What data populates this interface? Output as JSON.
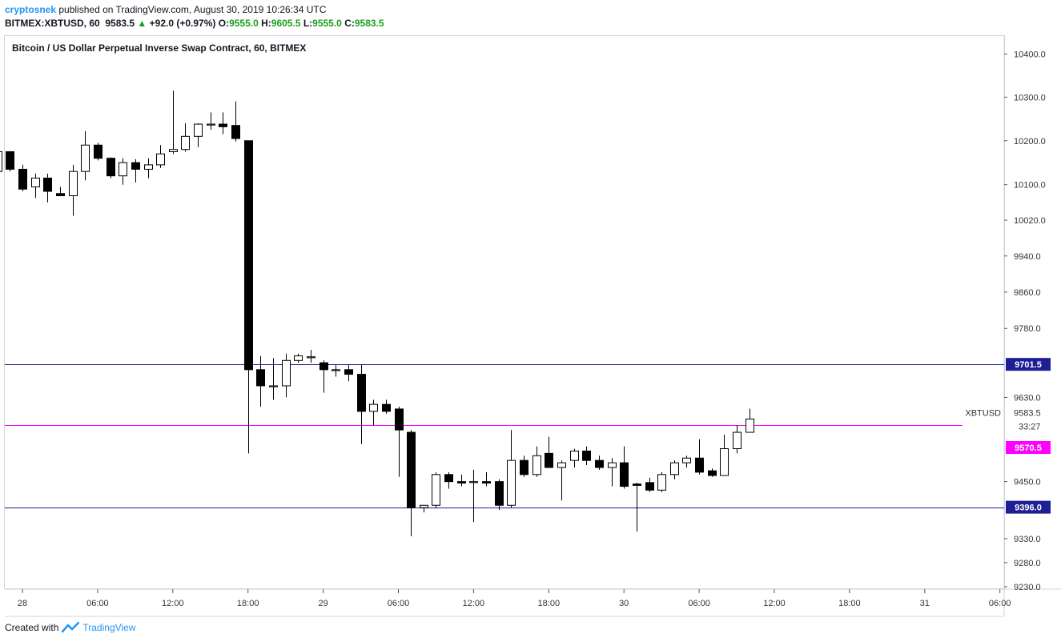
{
  "publish_line": {
    "author": "cryptosnek",
    "text": " published on TradingView.com, August 30, 2019 10:26:34 UTC"
  },
  "ticker_line": {
    "symbol": "BITMEX:XBTUSD, 60",
    "last": "9583.5",
    "arrow": "▲",
    "change": "+92.0 (+0.97%)",
    "o_label": "O:",
    "o": "9555.0",
    "h_label": "H:",
    "h": "9605.5",
    "l_label": "L:",
    "l": "9555.0",
    "c_label": "C:",
    "c": "9583.5"
  },
  "chart_title": "Bitcoin / US Dollar Perpetual Inverse Swap Contract, 60, BITMEX",
  "footer": {
    "created_with": "Created with",
    "brand": "TradingView"
  },
  "chart_data": {
    "type": "candlestick",
    "title": "Bitcoin / US Dollar Perpetual Inverse Swap Contract, 60, BITMEX",
    "symbol": "XBTUSD",
    "interval": "60",
    "scale": "log",
    "y_range": [
      9228,
      10420
    ],
    "y_ticks": [
      10400,
      10300,
      10200,
      10100,
      10020,
      9940,
      9860,
      9780,
      9630,
      9450,
      9330,
      9280,
      9230
    ],
    "x_range": [
      "2019-08-27T22:00",
      "2019-08-31T06:00"
    ],
    "x_ticks": [
      {
        "label": "28",
        "time": "2019-08-28T00:00"
      },
      {
        "label": "06:00",
        "time": "2019-08-28T06:00"
      },
      {
        "label": "12:00",
        "time": "2019-08-28T12:00"
      },
      {
        "label": "18:00",
        "time": "2019-08-28T18:00"
      },
      {
        "label": "29",
        "time": "2019-08-29T00:00"
      },
      {
        "label": "06:00",
        "time": "2019-08-29T06:00"
      },
      {
        "label": "12:00",
        "time": "2019-08-29T12:00"
      },
      {
        "label": "18:00",
        "time": "2019-08-29T18:00"
      },
      {
        "label": "30",
        "time": "2019-08-30T00:00"
      },
      {
        "label": "06:00",
        "time": "2019-08-30T06:00"
      },
      {
        "label": "12:00",
        "time": "2019-08-30T12:00"
      },
      {
        "label": "18:00",
        "time": "2019-08-30T18:00"
      },
      {
        "label": "31",
        "time": "2019-08-31T00:00"
      },
      {
        "label": "06:00",
        "time": "2019-08-31T06:00"
      }
    ],
    "horizontal_lines": [
      {
        "price": 9701.5,
        "label": "9701.5",
        "color": "#1e1e96"
      },
      {
        "price": 9396.0,
        "label": "9396.0",
        "color": "#1e1e96"
      },
      {
        "price": 9570.5,
        "label": "9570.5",
        "color": "#ff00ff"
      }
    ],
    "last_price": {
      "series": "XBTUSD",
      "value": "9583.5",
      "countdown": "33:27"
    },
    "colors": {
      "up_fill": "#ffffff",
      "down_fill": "#000000",
      "outline": "#000000",
      "line_blue": "#1e1e96",
      "line_magenta": "#ff00ff",
      "label_magenta": "#ff00ff"
    },
    "grid": false,
    "candles": [
      {
        "t": "2019-08-27T22:00",
        "o": 10130,
        "h": 10190,
        "l": 10128,
        "c": 10175
      },
      {
        "t": "2019-08-27T23:00",
        "o": 10175,
        "h": 10176,
        "l": 10130,
        "c": 10135
      },
      {
        "t": "2019-08-28T00:00",
        "o": 10135,
        "h": 10145,
        "l": 10085,
        "c": 10090
      },
      {
        "t": "2019-08-28T01:00",
        "o": 10095,
        "h": 10125,
        "l": 10070,
        "c": 10115
      },
      {
        "t": "2019-08-28T02:00",
        "o": 10115,
        "h": 10125,
        "l": 10060,
        "c": 10085
      },
      {
        "t": "2019-08-28T03:00",
        "o": 10080,
        "h": 10095,
        "l": 10075,
        "c": 10075
      },
      {
        "t": "2019-08-28T04:00",
        "o": 10075,
        "h": 10145,
        "l": 10030,
        "c": 10130
      },
      {
        "t": "2019-08-28T05:00",
        "o": 10130,
        "h": 10222,
        "l": 10110,
        "c": 10190
      },
      {
        "t": "2019-08-28T06:00",
        "o": 10190,
        "h": 10195,
        "l": 10155,
        "c": 10160
      },
      {
        "t": "2019-08-28T07:00",
        "o": 10160,
        "h": 10162,
        "l": 10115,
        "c": 10120
      },
      {
        "t": "2019-08-28T08:00",
        "o": 10120,
        "h": 10160,
        "l": 10100,
        "c": 10150
      },
      {
        "t": "2019-08-28T09:00",
        "o": 10150,
        "h": 10158,
        "l": 10105,
        "c": 10135
      },
      {
        "t": "2019-08-28T10:00",
        "o": 10135,
        "h": 10160,
        "l": 10115,
        "c": 10145
      },
      {
        "t": "2019-08-28T11:00",
        "o": 10145,
        "h": 10190,
        "l": 10138,
        "c": 10170
      },
      {
        "t": "2019-08-28T12:00",
        "o": 10175,
        "h": 10315,
        "l": 10170,
        "c": 10180
      },
      {
        "t": "2019-08-28T13:00",
        "o": 10180,
        "h": 10240,
        "l": 10175,
        "c": 10210
      },
      {
        "t": "2019-08-28T14:00",
        "o": 10210,
        "h": 10240,
        "l": 10185,
        "c": 10238
      },
      {
        "t": "2019-08-28T15:00",
        "o": 10238,
        "h": 10265,
        "l": 10225,
        "c": 10238
      },
      {
        "t": "2019-08-28T16:00",
        "o": 10238,
        "h": 10265,
        "l": 10215,
        "c": 10232
      },
      {
        "t": "2019-08-28T17:00",
        "o": 10235,
        "h": 10290,
        "l": 10198,
        "c": 10205
      },
      {
        "t": "2019-08-28T18:00",
        "o": 10200,
        "h": 10200,
        "l": 9510,
        "c": 9690
      },
      {
        "t": "2019-08-28T19:00",
        "o": 9690,
        "h": 9720,
        "l": 9610,
        "c": 9655
      },
      {
        "t": "2019-08-28T20:00",
        "o": 9655,
        "h": 9715,
        "l": 9625,
        "c": 9655
      },
      {
        "t": "2019-08-28T21:00",
        "o": 9655,
        "h": 9725,
        "l": 9630,
        "c": 9710
      },
      {
        "t": "2019-08-28T22:00",
        "o": 9710,
        "h": 9725,
        "l": 9705,
        "c": 9720
      },
      {
        "t": "2019-08-28T23:00",
        "o": 9718,
        "h": 9733,
        "l": 9705,
        "c": 9718
      },
      {
        "t": "2019-08-29T00:00",
        "o": 9705,
        "h": 9710,
        "l": 9640,
        "c": 9690
      },
      {
        "t": "2019-08-29T01:00",
        "o": 9690,
        "h": 9700,
        "l": 9675,
        "c": 9690
      },
      {
        "t": "2019-08-29T02:00",
        "o": 9690,
        "h": 9700,
        "l": 9665,
        "c": 9680
      },
      {
        "t": "2019-08-29T03:00",
        "o": 9680,
        "h": 9700,
        "l": 9530,
        "c": 9600
      },
      {
        "t": "2019-08-29T04:00",
        "o": 9600,
        "h": 9625,
        "l": 9570,
        "c": 9615
      },
      {
        "t": "2019-08-29T05:00",
        "o": 9615,
        "h": 9625,
        "l": 9595,
        "c": 9600
      },
      {
        "t": "2019-08-29T06:00",
        "o": 9605,
        "h": 9610,
        "l": 9460,
        "c": 9560
      },
      {
        "t": "2019-08-29T07:00",
        "o": 9555,
        "h": 9560,
        "l": 9335,
        "c": 9395
      },
      {
        "t": "2019-08-29T08:00",
        "o": 9395,
        "h": 9400,
        "l": 9385,
        "c": 9400
      },
      {
        "t": "2019-08-29T09:00",
        "o": 9400,
        "h": 9470,
        "l": 9395,
        "c": 9465
      },
      {
        "t": "2019-08-29T10:00",
        "o": 9465,
        "h": 9470,
        "l": 9435,
        "c": 9450
      },
      {
        "t": "2019-08-29T11:00",
        "o": 9450,
        "h": 9465,
        "l": 9440,
        "c": 9447
      },
      {
        "t": "2019-08-29T12:00",
        "o": 9450,
        "h": 9475,
        "l": 9365,
        "c": 9450
      },
      {
        "t": "2019-08-29T13:00",
        "o": 9450,
        "h": 9470,
        "l": 9440,
        "c": 9447
      },
      {
        "t": "2019-08-29T14:00",
        "o": 9450,
        "h": 9455,
        "l": 9390,
        "c": 9400
      },
      {
        "t": "2019-08-29T15:00",
        "o": 9400,
        "h": 9560,
        "l": 9395,
        "c": 9495
      },
      {
        "t": "2019-08-29T16:00",
        "o": 9495,
        "h": 9505,
        "l": 9460,
        "c": 9465
      },
      {
        "t": "2019-08-29T17:00",
        "o": 9465,
        "h": 9525,
        "l": 9460,
        "c": 9505
      },
      {
        "t": "2019-08-29T18:00",
        "o": 9510,
        "h": 9545,
        "l": 9480,
        "c": 9480
      },
      {
        "t": "2019-08-29T19:00",
        "o": 9480,
        "h": 9495,
        "l": 9410,
        "c": 9490
      },
      {
        "t": "2019-08-29T20:00",
        "o": 9495,
        "h": 9520,
        "l": 9480,
        "c": 9515
      },
      {
        "t": "2019-08-29T21:00",
        "o": 9515,
        "h": 9525,
        "l": 9485,
        "c": 9495
      },
      {
        "t": "2019-08-29T22:00",
        "o": 9495,
        "h": 9505,
        "l": 9475,
        "c": 9480
      },
      {
        "t": "2019-08-29T23:00",
        "o": 9480,
        "h": 9500,
        "l": 9440,
        "c": 9490
      },
      {
        "t": "2019-08-30T00:00",
        "o": 9490,
        "h": 9525,
        "l": 9435,
        "c": 9440
      },
      {
        "t": "2019-08-30T01:00",
        "o": 9445,
        "h": 9448,
        "l": 9345,
        "c": 9442
      },
      {
        "t": "2019-08-30T02:00",
        "o": 9448,
        "h": 9458,
        "l": 9428,
        "c": 9432
      },
      {
        "t": "2019-08-30T03:00",
        "o": 9432,
        "h": 9470,
        "l": 9428,
        "c": 9465
      },
      {
        "t": "2019-08-30T04:00",
        "o": 9465,
        "h": 9495,
        "l": 9455,
        "c": 9490
      },
      {
        "t": "2019-08-30T05:00",
        "o": 9490,
        "h": 9505,
        "l": 9480,
        "c": 9500
      },
      {
        "t": "2019-08-30T06:00",
        "o": 9500,
        "h": 9540,
        "l": 9465,
        "c": 9470
      },
      {
        "t": "2019-08-30T07:00",
        "o": 9473,
        "h": 9478,
        "l": 9460,
        "c": 9463
      },
      {
        "t": "2019-08-30T08:00",
        "o": 9463,
        "h": 9550,
        "l": 9463,
        "c": 9520
      },
      {
        "t": "2019-08-30T09:00",
        "o": 9520,
        "h": 9570,
        "l": 9510,
        "c": 9555
      },
      {
        "t": "2019-08-30T10:00",
        "o": 9555,
        "h": 9605.5,
        "l": 9555,
        "c": 9583.5
      }
    ]
  }
}
